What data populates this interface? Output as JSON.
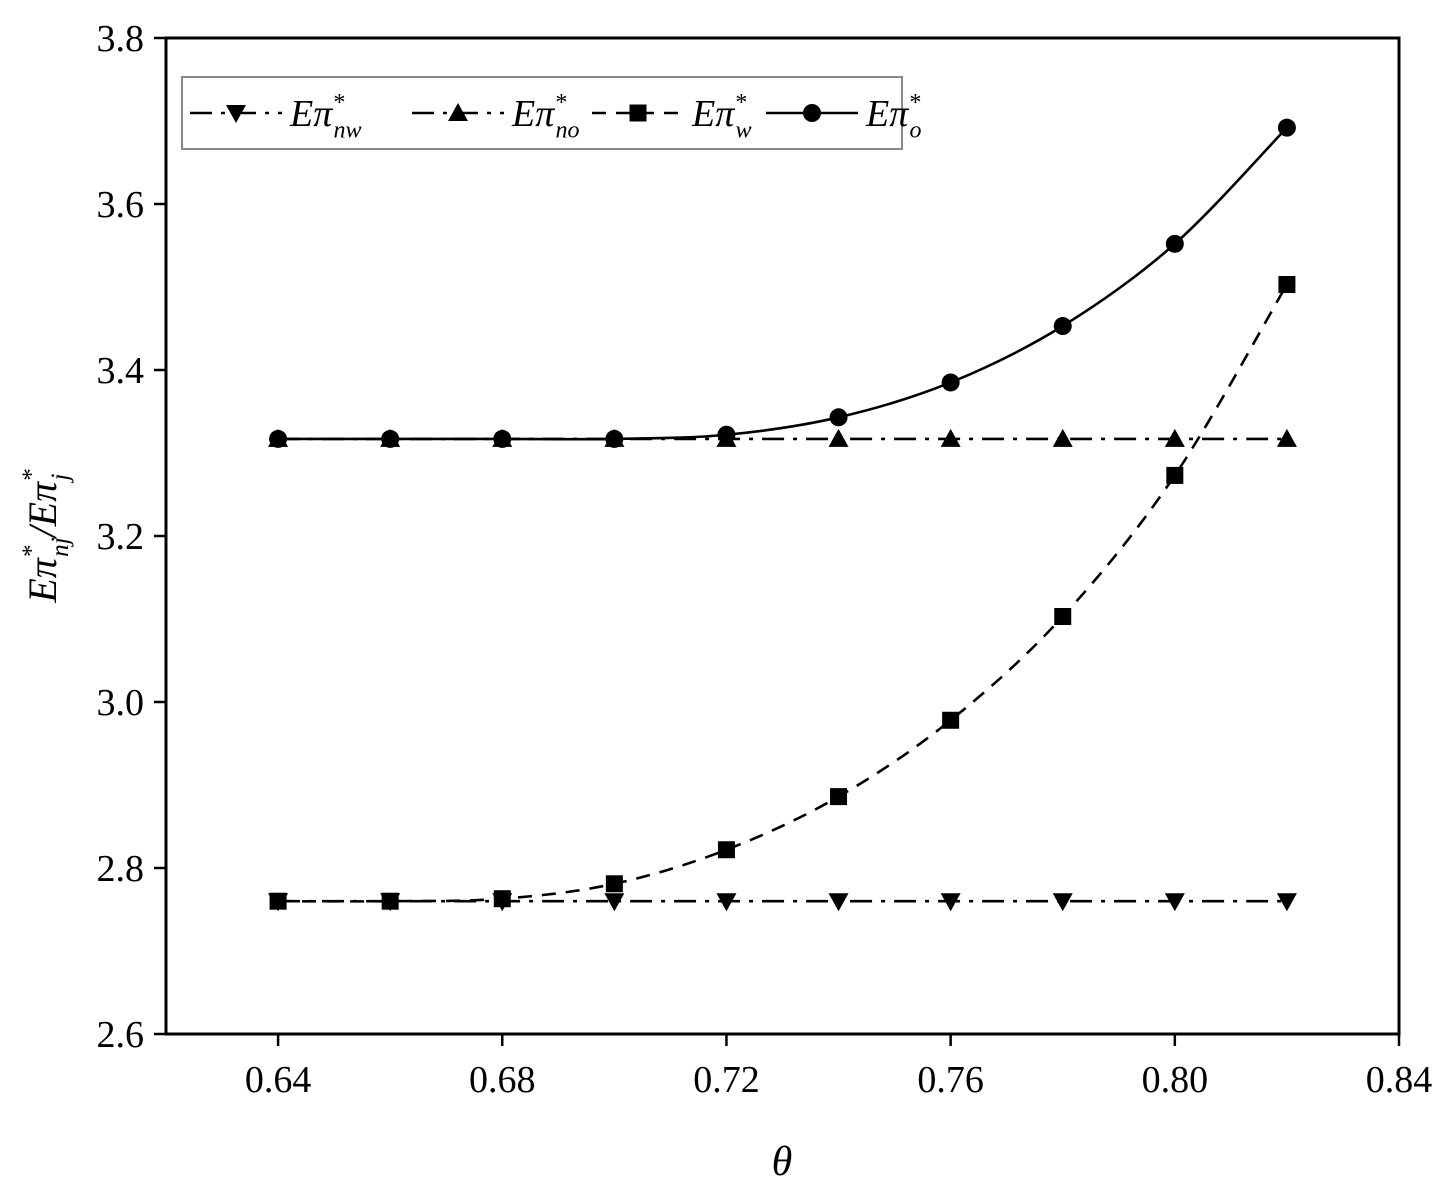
{
  "chart_data": {
    "type": "line",
    "x": [
      0.64,
      0.66,
      0.68,
      0.7,
      0.72,
      0.74,
      0.76,
      0.78,
      0.8,
      0.82
    ],
    "xlim": [
      0.62,
      0.84
    ],
    "ylim": [
      2.6,
      3.8
    ],
    "x_ticks": [
      "0.64",
      "0.68",
      "0.72",
      "0.76",
      "0.80",
      "0.84"
    ],
    "y_ticks": [
      "2.6",
      "2.8",
      "3.0",
      "3.2",
      "3.4",
      "3.6",
      "3.8"
    ],
    "xlabel": "θ",
    "ylabel": {
      "main": "Eπ",
      "sup1": "*",
      "sub1": "nj",
      "sep": "/Eπ",
      "sup2": "*",
      "sub2": "j"
    },
    "grid": false,
    "legend_position": "top-left",
    "series": [
      {
        "name": {
          "main": "Eπ",
          "sup": "*",
          "sub": "nw"
        },
        "marker": "triangle-down",
        "line_style": "dash-dot",
        "values": [
          2.76,
          2.76,
          2.76,
          2.76,
          2.76,
          2.76,
          2.76,
          2.76,
          2.76,
          2.76
        ]
      },
      {
        "name": {
          "main": "Eπ",
          "sup": "*",
          "sub": "no"
        },
        "marker": "triangle-up",
        "line_style": "dash-dot",
        "values": [
          3.317,
          3.317,
          3.317,
          3.317,
          3.317,
          3.317,
          3.317,
          3.317,
          3.317,
          3.317
        ]
      },
      {
        "name": {
          "main": "Eπ",
          "sup": "*",
          "sub": "w"
        },
        "marker": "square",
        "line_style": "dashed",
        "values": [
          2.76,
          2.76,
          2.763,
          2.781,
          2.822,
          2.886,
          2.978,
          3.103,
          3.273,
          3.503
        ]
      },
      {
        "name": {
          "main": "Eπ",
          "sup": "*",
          "sub": "o"
        },
        "marker": "circle",
        "line_style": "solid",
        "values": [
          3.317,
          3.317,
          3.317,
          3.317,
          3.322,
          3.343,
          3.385,
          3.453,
          3.552,
          3.692
        ]
      }
    ],
    "colors": {
      "ink": "#000000",
      "background": "#ffffff"
    }
  }
}
